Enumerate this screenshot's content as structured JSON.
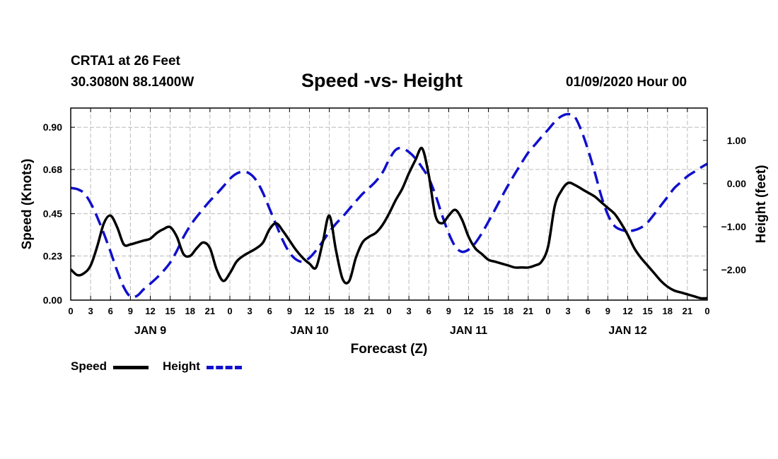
{
  "header": {
    "station": "CRTA1 at 26 Feet",
    "coords": "30.3080N 88.1400W",
    "title": "Speed -vs- Height",
    "date": "01/09/2020 Hour 00"
  },
  "legend": {
    "speed_label": "Speed",
    "height_label": "Height"
  },
  "colors": {
    "speed": "#000000",
    "height": "#1010cc",
    "grid": "#bbbbbb"
  },
  "chart_data": {
    "type": "line",
    "title": "Speed -vs- Height",
    "xlabel": "Forecast (Z)",
    "ylabel_left": "Speed (Knots)",
    "ylabel_right": "Height (feet)",
    "x_range_hours": [
      0,
      96
    ],
    "x_ticks_hours": [
      0,
      3,
      6,
      9,
      12,
      15,
      18,
      21,
      24,
      27,
      30,
      33,
      36,
      39,
      42,
      45,
      48,
      51,
      54,
      57,
      60,
      63,
      66,
      69,
      72,
      75,
      78,
      81,
      84,
      87,
      90,
      93,
      96
    ],
    "x_tick_labels": [
      "0",
      "3",
      "6",
      "9",
      "12",
      "15",
      "18",
      "21",
      "0",
      "3",
      "6",
      "9",
      "12",
      "15",
      "18",
      "21",
      "0",
      "3",
      "6",
      "9",
      "12",
      "15",
      "18",
      "21",
      "0",
      "3",
      "6",
      "9",
      "12",
      "15",
      "18",
      "21",
      "0"
    ],
    "day_labels": [
      {
        "hour": 12,
        "label": "JAN 9"
      },
      {
        "hour": 36,
        "label": "JAN 10"
      },
      {
        "hour": 60,
        "label": "JAN 11"
      },
      {
        "hour": 84,
        "label": "JAN 12"
      }
    ],
    "y_left_range": [
      0,
      1.0
    ],
    "y_left_ticks": [
      0.0,
      0.23,
      0.45,
      0.68,
      0.9
    ],
    "y_left_tick_labels": [
      "0.00",
      "0.23",
      "0.45",
      "0.68",
      "0.90"
    ],
    "y_right_range": [
      -2.7,
      1.75
    ],
    "y_right_ticks": [
      -2.0,
      -1.0,
      0.0,
      1.0
    ],
    "y_right_tick_labels": [
      "−2.00",
      "−1.00",
      "0.00",
      "1.00"
    ],
    "grid": true,
    "series": [
      {
        "name": "Speed",
        "axis": "left",
        "style": "solid",
        "x": [
          0,
          1,
          2,
          3,
          4,
          5,
          6,
          7,
          8,
          9,
          10,
          11,
          12,
          13,
          14,
          15,
          16,
          17,
          18,
          19,
          20,
          21,
          22,
          23,
          24,
          25,
          26,
          27,
          28,
          29,
          30,
          31,
          32,
          33,
          34,
          35,
          36,
          37,
          38,
          39,
          40,
          41,
          42,
          43,
          44,
          45,
          46,
          47,
          48,
          49,
          50,
          51,
          52,
          53,
          54,
          55,
          56,
          57,
          58,
          59,
          60,
          61,
          62,
          63,
          64,
          65,
          66,
          67,
          68,
          69,
          70,
          71,
          72,
          73,
          74,
          75,
          76,
          77,
          78,
          79,
          80,
          81,
          82,
          83,
          84,
          85,
          86,
          87,
          88,
          89,
          90,
          91,
          92,
          93,
          94,
          95,
          96
        ],
        "values": [
          0.16,
          0.13,
          0.14,
          0.18,
          0.28,
          0.4,
          0.44,
          0.38,
          0.29,
          0.29,
          0.3,
          0.31,
          0.32,
          0.35,
          0.37,
          0.38,
          0.33,
          0.24,
          0.23,
          0.27,
          0.3,
          0.27,
          0.16,
          0.1,
          0.14,
          0.2,
          0.23,
          0.25,
          0.27,
          0.3,
          0.37,
          0.4,
          0.36,
          0.31,
          0.26,
          0.22,
          0.19,
          0.17,
          0.3,
          0.44,
          0.26,
          0.11,
          0.1,
          0.22,
          0.3,
          0.33,
          0.35,
          0.39,
          0.45,
          0.52,
          0.58,
          0.66,
          0.73,
          0.79,
          0.65,
          0.44,
          0.4,
          0.44,
          0.47,
          0.42,
          0.33,
          0.27,
          0.24,
          0.21,
          0.2,
          0.19,
          0.18,
          0.17,
          0.17,
          0.17,
          0.18,
          0.2,
          0.28,
          0.49,
          0.57,
          0.61,
          0.6,
          0.58,
          0.56,
          0.54,
          0.51,
          0.48,
          0.45,
          0.4,
          0.34,
          0.27,
          0.22,
          0.18,
          0.14,
          0.1,
          0.07,
          0.05,
          0.04,
          0.03,
          0.02,
          0.01,
          0.01
        ]
      },
      {
        "name": "Height",
        "axis": "right",
        "style": "dashed",
        "x": [
          0,
          1,
          2,
          3,
          4,
          5,
          6,
          7,
          8,
          9,
          10,
          11,
          12,
          13,
          14,
          15,
          16,
          17,
          18,
          19,
          20,
          21,
          22,
          23,
          24,
          25,
          26,
          27,
          28,
          29,
          30,
          31,
          32,
          33,
          34,
          35,
          36,
          37,
          38,
          39,
          40,
          41,
          42,
          43,
          44,
          45,
          46,
          47,
          48,
          49,
          50,
          51,
          52,
          53,
          54,
          55,
          56,
          57,
          58,
          59,
          60,
          61,
          62,
          63,
          64,
          65,
          66,
          67,
          68,
          69,
          70,
          71,
          72,
          73,
          74,
          75,
          76,
          77,
          78,
          79,
          80,
          81,
          82,
          83,
          84,
          85,
          86,
          87,
          88,
          89,
          90,
          91,
          92,
          93,
          94,
          95,
          96
        ],
        "values": [
          -0.1,
          -0.13,
          -0.22,
          -0.45,
          -0.78,
          -1.16,
          -1.58,
          -2.02,
          -2.4,
          -2.62,
          -2.6,
          -2.45,
          -2.32,
          -2.18,
          -2.02,
          -1.83,
          -1.56,
          -1.24,
          -0.98,
          -0.77,
          -0.58,
          -0.4,
          -0.24,
          -0.07,
          0.11,
          0.23,
          0.28,
          0.23,
          0.07,
          -0.22,
          -0.59,
          -0.96,
          -1.32,
          -1.6,
          -1.76,
          -1.81,
          -1.72,
          -1.55,
          -1.34,
          -1.12,
          -0.93,
          -0.77,
          -0.59,
          -0.41,
          -0.24,
          -0.1,
          0.05,
          0.25,
          0.55,
          0.78,
          0.82,
          0.73,
          0.58,
          0.37,
          0.12,
          -0.26,
          -0.73,
          -1.15,
          -1.46,
          -1.58,
          -1.53,
          -1.38,
          -1.15,
          -0.88,
          -0.6,
          -0.31,
          -0.03,
          0.23,
          0.48,
          0.72,
          0.9,
          1.08,
          1.25,
          1.43,
          1.56,
          1.61,
          1.55,
          1.23,
          0.79,
          0.28,
          -0.28,
          -0.72,
          -0.98,
          -1.07,
          -1.1,
          -1.08,
          -1.02,
          -0.9,
          -0.71,
          -0.51,
          -0.31,
          -0.11,
          0.03,
          0.17,
          0.27,
          0.37,
          0.46
        ]
      }
    ]
  }
}
